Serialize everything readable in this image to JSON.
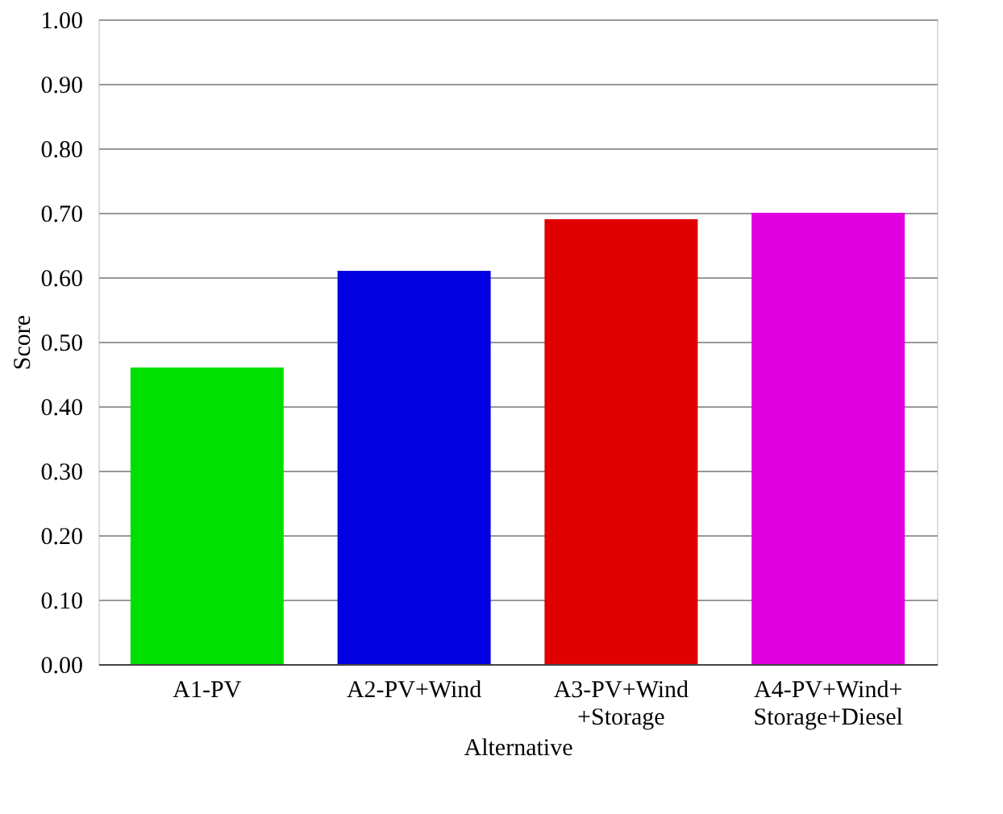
{
  "chart_data": {
    "type": "bar",
    "xlabel": "Alternative",
    "ylabel": "Score",
    "categories": [
      "A1-PV",
      "A2-PV+Wind",
      "A3-PV+Wind\n+Storage",
      "A4-PV+Wind+\nStorage+Diesel"
    ],
    "values": [
      0.46,
      0.61,
      0.69,
      0.7
    ],
    "colors": [
      "#00e000",
      "#0000e0",
      "#e00000",
      "#e000e0"
    ],
    "ylim": [
      0,
      1
    ],
    "yticks": [
      {
        "value": 0,
        "label": "0.00"
      },
      {
        "value": 0.1,
        "label": "0.10"
      },
      {
        "value": 0.2,
        "label": "0.20"
      },
      {
        "value": 0.3,
        "label": "0.30"
      },
      {
        "value": 0.4,
        "label": "0.40"
      },
      {
        "value": 0.5,
        "label": "0.50"
      },
      {
        "value": 0.6,
        "label": "0.60"
      },
      {
        "value": 0.7,
        "label": "0.70"
      },
      {
        "value": 0.8,
        "label": "0.80"
      },
      {
        "value": 0.9,
        "label": "0.90"
      },
      {
        "value": 1,
        "label": "1.00"
      }
    ],
    "grid": "y"
  }
}
